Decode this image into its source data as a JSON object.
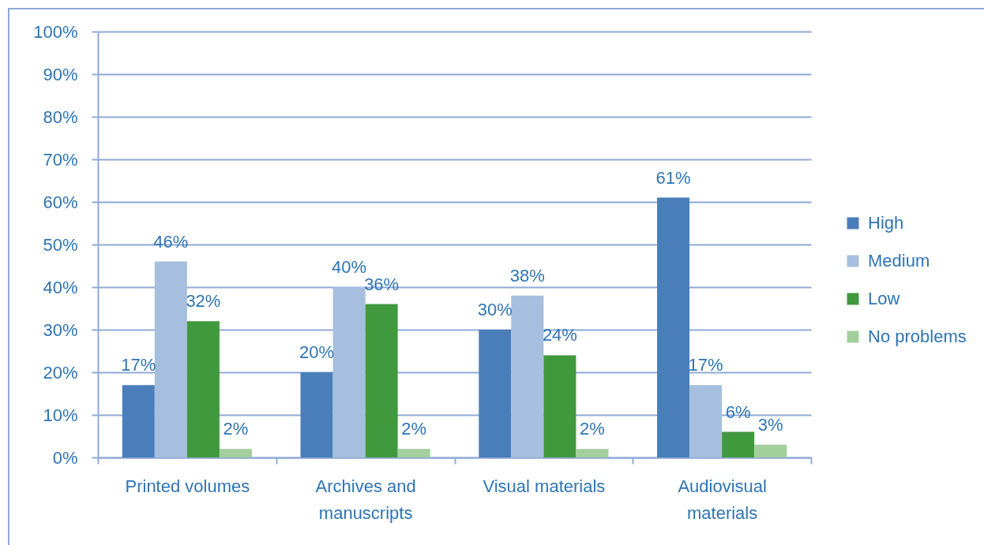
{
  "chart_data": {
    "type": "bar",
    "categories": [
      "Printed volumes",
      "Archives and manuscripts",
      "Visual materials",
      "Audiovisual materials"
    ],
    "series": [
      {
        "name": "High",
        "color": "#4a7ebb",
        "values": [
          17,
          20,
          30,
          61
        ],
        "value_labels": [
          "17%",
          "20%",
          "30%",
          "61%"
        ]
      },
      {
        "name": "Medium",
        "color": "#a7bfde",
        "values": [
          46,
          40,
          38,
          17
        ],
        "value_labels": [
          "46%",
          "40%",
          "38%",
          "17%"
        ]
      },
      {
        "name": "Low",
        "color": "#41993e",
        "values": [
          32,
          36,
          24,
          6
        ],
        "value_labels": [
          "32%",
          "36%",
          "24%",
          "6%"
        ]
      },
      {
        "name": "No problems",
        "color": "#a2cf9c",
        "values": [
          2,
          2,
          2,
          3
        ],
        "value_labels": [
          "2%",
          "2%",
          "2%",
          "3%"
        ]
      }
    ],
    "ylim": [
      0,
      100
    ],
    "yticks": [
      {
        "value": 0,
        "label": "0%"
      },
      {
        "value": 10,
        "label": "10%"
      },
      {
        "value": 20,
        "label": "20%"
      },
      {
        "value": 30,
        "label": "30%"
      },
      {
        "value": 40,
        "label": "40%"
      },
      {
        "value": 50,
        "label": "50%"
      },
      {
        "value": 60,
        "label": "60%"
      },
      {
        "value": 70,
        "label": "70%"
      },
      {
        "value": 80,
        "label": "80%"
      },
      {
        "value": 90,
        "label": "90%"
      },
      {
        "value": 100,
        "label": "100%"
      }
    ],
    "grid": "y",
    "legend": "right"
  }
}
